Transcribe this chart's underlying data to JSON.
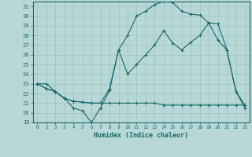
{
  "xlabel": "Humidex (Indice chaleur)",
  "xlim": [
    -0.5,
    23.5
  ],
  "ylim": [
    19,
    31.5
  ],
  "yticks": [
    19,
    20,
    21,
    22,
    23,
    24,
    25,
    26,
    27,
    28,
    29,
    30,
    31
  ],
  "xticks": [
    0,
    1,
    2,
    3,
    4,
    5,
    6,
    7,
    8,
    9,
    10,
    11,
    12,
    13,
    14,
    15,
    16,
    17,
    18,
    19,
    20,
    21,
    22,
    23
  ],
  "bg_color": "#b8d8d8",
  "line_color": "#1a6868",
  "grid_color": "#9ac0c0",
  "line1_x": [
    0,
    1,
    2,
    3,
    4,
    5,
    6,
    7,
    8,
    9,
    10,
    11,
    12,
    13,
    14,
    15,
    16,
    17,
    18,
    19,
    20,
    21,
    22,
    23
  ],
  "line1_y": [
    23.0,
    23.0,
    22.2,
    21.5,
    20.5,
    20.2,
    19.0,
    20.5,
    22.3,
    26.5,
    28.0,
    30.0,
    30.5,
    31.2,
    31.5,
    31.4,
    30.5,
    30.2,
    30.1,
    29.3,
    29.2,
    26.5,
    22.2,
    20.5
  ],
  "line2_x": [
    0,
    1,
    2,
    3,
    4,
    5,
    6,
    7,
    8,
    9,
    10,
    11,
    12,
    13,
    14,
    15,
    16,
    17,
    18,
    19,
    20,
    21,
    22,
    23
  ],
  "line2_y": [
    23.0,
    22.5,
    22.2,
    21.5,
    21.2,
    21.1,
    21.0,
    21.0,
    21.0,
    21.0,
    21.0,
    21.0,
    21.0,
    21.0,
    20.8,
    20.8,
    20.8,
    20.8,
    20.8,
    20.8,
    20.8,
    20.8,
    20.8,
    20.8
  ],
  "line3_x": [
    0,
    1,
    2,
    3,
    4,
    5,
    6,
    7,
    8,
    9,
    10,
    11,
    12,
    13,
    14,
    15,
    16,
    17,
    18,
    19,
    20,
    21,
    22,
    23
  ],
  "line3_y": [
    23.0,
    22.5,
    22.2,
    21.5,
    21.2,
    21.1,
    21.0,
    21.0,
    22.5,
    26.5,
    24.0,
    25.0,
    26.0,
    27.0,
    28.5,
    27.2,
    26.5,
    27.3,
    28.0,
    29.3,
    27.5,
    26.5,
    22.2,
    20.8
  ]
}
